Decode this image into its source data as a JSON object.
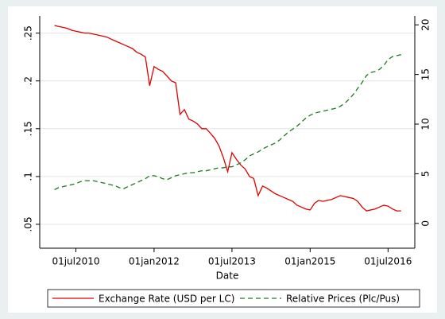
{
  "chart_data": {
    "type": "line",
    "x_label": "Date",
    "x": [
      "2010-02-01",
      "2010-03-01",
      "2010-04-01",
      "2010-05-01",
      "2010-06-01",
      "2010-07-01",
      "2010-08-01",
      "2010-09-01",
      "2010-10-01",
      "2010-11-01",
      "2010-12-01",
      "2011-01-01",
      "2011-02-01",
      "2011-03-01",
      "2011-04-01",
      "2011-05-01",
      "2011-06-01",
      "2011-07-01",
      "2011-08-01",
      "2011-09-01",
      "2011-10-01",
      "2011-11-01",
      "2011-12-01",
      "2012-01-01",
      "2012-02-01",
      "2012-03-01",
      "2012-04-01",
      "2012-05-01",
      "2012-06-01",
      "2012-07-01",
      "2012-08-01",
      "2012-09-01",
      "2012-10-01",
      "2012-11-01",
      "2012-12-01",
      "2013-01-01",
      "2013-02-01",
      "2013-03-01",
      "2013-04-01",
      "2013-05-01",
      "2013-06-01",
      "2013-07-01",
      "2013-08-01",
      "2013-09-01",
      "2013-10-01",
      "2013-11-01",
      "2013-12-01",
      "2014-01-01",
      "2014-02-01",
      "2014-03-01",
      "2014-04-01",
      "2014-05-01",
      "2014-06-01",
      "2014-07-01",
      "2014-08-01",
      "2014-09-01",
      "2014-10-01",
      "2014-11-01",
      "2014-12-01",
      "2015-01-01",
      "2015-02-01",
      "2015-03-01",
      "2015-04-01",
      "2015-05-01",
      "2015-06-01",
      "2015-07-01",
      "2015-08-01",
      "2015-09-01",
      "2015-10-01",
      "2015-11-01",
      "2015-12-01",
      "2016-01-01",
      "2016-02-01",
      "2016-03-01",
      "2016-04-01",
      "2016-05-01",
      "2016-06-01",
      "2016-07-01",
      "2016-08-01",
      "2016-09-01",
      "2016-10-01"
    ],
    "series": [
      {
        "name": "Exchange Rate (USD per LC)",
        "color": "#e00000",
        "dash": "none",
        "values": [
          0.258,
          0.257,
          0.256,
          0.255,
          0.253,
          0.252,
          0.251,
          0.25,
          0.25,
          0.249,
          0.248,
          0.247,
          0.246,
          0.244,
          0.242,
          0.24,
          0.238,
          0.236,
          0.234,
          0.23,
          0.228,
          0.225,
          0.195,
          0.215,
          0.212,
          0.21,
          0.205,
          0.2,
          0.198,
          0.165,
          0.17,
          0.16,
          0.158,
          0.155,
          0.15,
          0.15,
          0.145,
          0.14,
          0.132,
          0.12,
          0.105,
          0.125,
          0.118,
          0.112,
          0.108,
          0.1,
          0.098,
          0.08,
          0.09,
          0.088,
          0.085,
          0.082,
          0.08,
          0.078,
          0.076,
          0.074,
          0.07,
          0.068,
          0.066,
          0.065,
          0.072,
          0.075,
          0.074,
          0.075,
          0.076,
          0.078,
          0.08,
          0.079,
          0.078,
          0.077,
          0.074,
          0.068,
          0.064,
          0.065,
          0.066,
          0.068,
          0.07,
          0.069,
          0.066,
          0.064,
          0.064
        ]
      },
      {
        "name": "Relative Prices (Plc/Pus)",
        "color": "#1e7b1e",
        "dash": "6 4",
        "axis": "y2",
        "values": [
          3.4,
          3.6,
          3.7,
          3.8,
          3.9,
          4.0,
          4.2,
          4.3,
          4.3,
          4.3,
          4.2,
          4.1,
          4.0,
          3.9,
          3.8,
          3.6,
          3.5,
          3.7,
          3.9,
          4.1,
          4.3,
          4.5,
          4.8,
          4.8,
          4.7,
          4.5,
          4.4,
          4.6,
          4.8,
          4.9,
          5.0,
          5.1,
          5.1,
          5.2,
          5.3,
          5.3,
          5.4,
          5.5,
          5.6,
          5.6,
          5.7,
          5.7,
          5.9,
          6.1,
          6.4,
          6.8,
          7.0,
          7.2,
          7.5,
          7.7,
          7.9,
          8.1,
          8.4,
          8.8,
          9.2,
          9.5,
          9.8,
          10.2,
          10.6,
          10.9,
          11.1,
          11.2,
          11.3,
          11.4,
          11.5,
          11.6,
          11.8,
          12.1,
          12.5,
          13.0,
          13.6,
          14.2,
          14.9,
          15.2,
          15.3,
          15.5,
          15.9,
          16.5,
          16.8,
          16.9,
          17.0
        ]
      }
    ],
    "xlim": [
      "2009-10-20",
      "2017-01-05"
    ],
    "xticks": [
      {
        "value": "2010-07-01",
        "label": "01jul2010"
      },
      {
        "value": "2012-01-01",
        "label": "01jan2012"
      },
      {
        "value": "2013-07-01",
        "label": "01jul2013"
      },
      {
        "value": "2015-01-01",
        "label": "01jan2015"
      },
      {
        "value": "2016-07-01",
        "label": "01jul2016"
      }
    ],
    "ylim": [
      0.025,
      0.268
    ],
    "yticks": [
      {
        "value": 0.05,
        "label": ".05"
      },
      {
        "value": 0.1,
        "label": ".1"
      },
      {
        "value": 0.15,
        "label": ".15"
      },
      {
        "value": 0.2,
        "label": ".2"
      },
      {
        "value": 0.25,
        "label": ".25"
      }
    ],
    "y2lim": [
      -2.5,
      20.9
    ],
    "y2ticks": [
      0,
      5,
      10,
      15,
      20
    ],
    "grid": true
  }
}
